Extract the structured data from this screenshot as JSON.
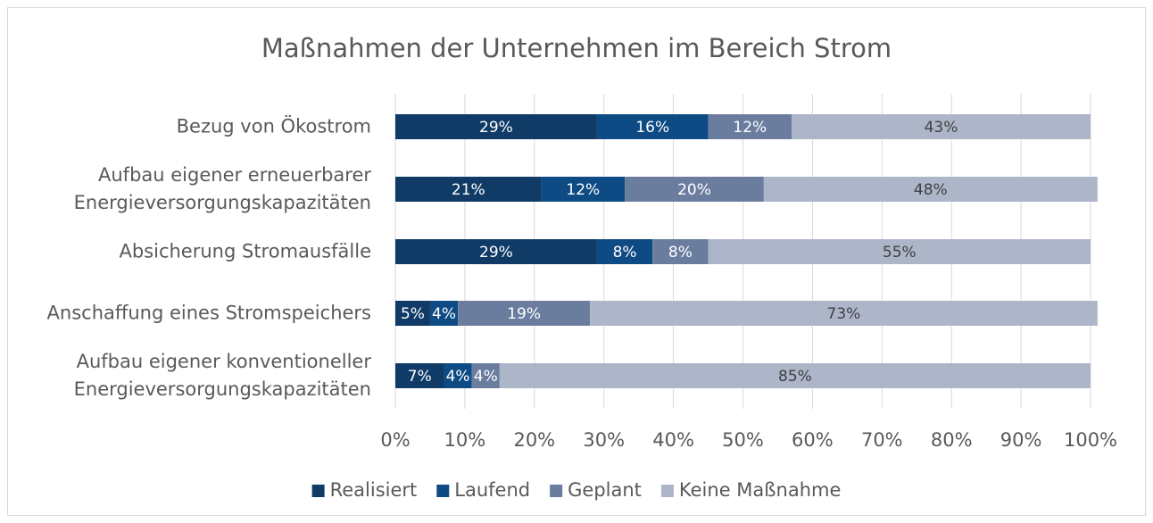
{
  "chart_data": {
    "type": "stacked_bar_horizontal",
    "title": "Maßnahmen der Unternehmen im Bereich Strom",
    "categories": [
      "Bezug von Ökostrom",
      "Aufbau eigener erneuerbarer\nEnergieversorgungskapazitäten",
      "Absicherung Stromausfälle",
      "Anschaffung eines Stromspeichers",
      "Aufbau eigener konventioneller\nEnergieversorgungskapazitäten"
    ],
    "series": [
      {
        "name": "Realisiert",
        "color": "#0f3b66",
        "values": [
          29,
          21,
          29,
          5,
          7
        ],
        "value_labels": [
          "29%",
          "21%",
          "29%",
          "5%",
          "7%"
        ]
      },
      {
        "name": "Laufend",
        "color": "#0e4b85",
        "values": [
          16,
          12,
          8,
          4,
          4
        ],
        "value_labels": [
          "16%",
          "12%",
          "8%",
          "4%",
          "4%"
        ]
      },
      {
        "name": "Geplant",
        "color": "#6b7d9f",
        "values": [
          12,
          20,
          8,
          19,
          4
        ],
        "value_labels": [
          "12%",
          "20%",
          "8%",
          "19%",
          "4%"
        ]
      },
      {
        "name": "Keine Maßnahme",
        "color": "#adb5c9",
        "values": [
          43,
          48,
          55,
          73,
          85
        ],
        "value_labels": [
          "43%",
          "48%",
          "55%",
          "73%",
          "85%"
        ]
      }
    ],
    "xlim": [
      0,
      100
    ],
    "xticks": [
      {
        "value": 0,
        "label": "0%"
      },
      {
        "value": 10,
        "label": "10%"
      },
      {
        "value": 20,
        "label": "20%"
      },
      {
        "value": 30,
        "label": "30%"
      },
      {
        "value": 40,
        "label": "40%"
      },
      {
        "value": 50,
        "label": "50%"
      },
      {
        "value": 60,
        "label": "60%"
      },
      {
        "value": 70,
        "label": "70%"
      },
      {
        "value": 80,
        "label": "80%"
      },
      {
        "value": 90,
        "label": "90%"
      },
      {
        "value": 100,
        "label": "100%"
      }
    ],
    "grid": true,
    "legend": "bottom"
  }
}
